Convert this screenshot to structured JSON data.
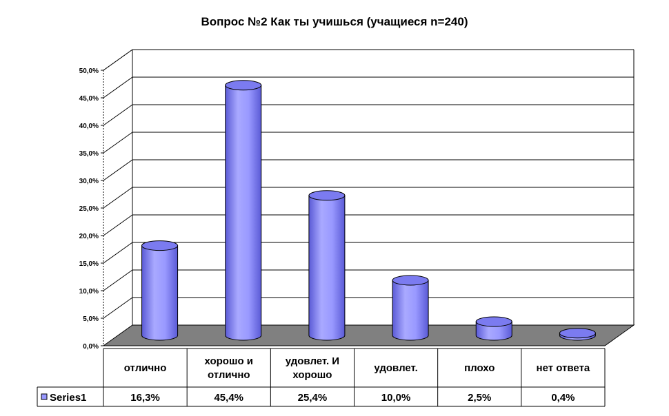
{
  "chart_data": {
    "type": "bar",
    "title": "Вопрос №2 Как ты учишься (учащиеся n=240)",
    "categories": [
      [
        "отлично"
      ],
      [
        "хорошо и",
        "отлично"
      ],
      [
        "удовлет. И",
        "хорошо"
      ],
      [
        "удовлет."
      ],
      [
        "плохо"
      ],
      [
        "нет ответа"
      ]
    ],
    "series": [
      {
        "name": "Series1",
        "values": [
          16.3,
          45.4,
          25.4,
          10.0,
          2.5,
          0.4
        ],
        "value_labels": [
          "16,3%",
          "45,4%",
          "25,4%",
          "10,0%",
          "2,5%",
          "0,4%"
        ]
      }
    ],
    "y_ticks": [
      "0,0%",
      "5,0%",
      "10,0%",
      "15,0%",
      "20,0%",
      "25,0%",
      "30,0%",
      "35,0%",
      "40,0%",
      "45,0%",
      "50,0%"
    ],
    "ylim": [
      0,
      50
    ],
    "grid": true,
    "legend": "data-table",
    "colors": {
      "bar": "#9999ff",
      "bar_dark": "#5a5ad6",
      "bar_top": "#7b7bf0",
      "floor": "#808080",
      "grid": "#000000"
    }
  }
}
